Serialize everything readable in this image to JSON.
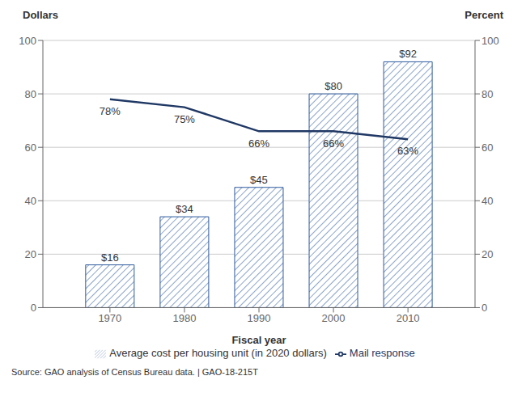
{
  "chart_data": {
    "type": "bar",
    "x": [
      1970,
      1980,
      1990,
      2000,
      2010
    ],
    "xlim": [
      1961,
      2019
    ],
    "xticks": [
      1970,
      1980,
      1990,
      2000,
      2010
    ],
    "ylim": [
      0,
      100
    ],
    "yticks": [
      0,
      20,
      40,
      60,
      80,
      100
    ],
    "y2lim": [
      0,
      100
    ],
    "y2ticks": [
      0,
      20,
      40,
      60,
      80,
      100
    ],
    "xlabel": "Fiscal year",
    "ylabel": "Dollars",
    "y2label": "Percent",
    "annotations": [
      "Source: GAO analysis of Census Bureau data.  |  GAO-18-215T"
    ],
    "grid": true,
    "legend": "bottom",
    "data_labels": true,
    "series": [
      {
        "name": "Average cost per housing unit (in 2020 dollars)",
        "type": "bar",
        "color": "#2e5b9e",
        "values": [
          16,
          34,
          45,
          80,
          92
        ],
        "value_labels": [
          "$16",
          "$34",
          "$45",
          "$80",
          "$92"
        ]
      },
      {
        "name": "Mail response",
        "type": "line",
        "color": "#1f3864",
        "axis": "y2",
        "values": [
          78,
          75,
          66,
          66,
          63
        ],
        "value_labels": [
          "78%",
          "75%",
          "66%",
          "66%",
          "63%"
        ]
      }
    ]
  }
}
